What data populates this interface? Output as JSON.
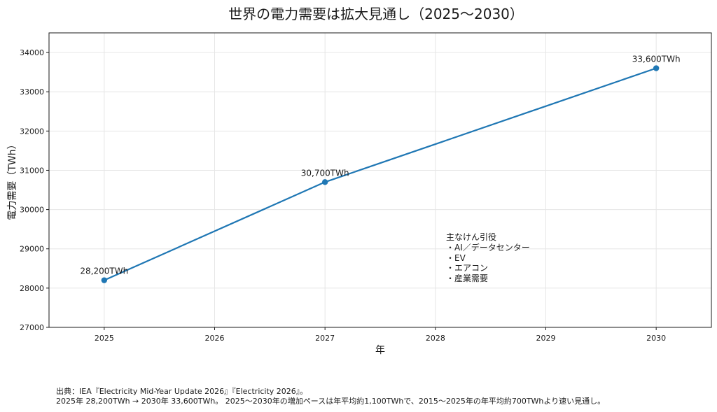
{
  "chart_data": {
    "type": "line",
    "title": "世界の電力需要は拡大見通し（2025〜2030）",
    "xlabel": "年",
    "ylabel": "電力需要（TWh）",
    "x": [
      2025,
      2027,
      2030
    ],
    "y": [
      28200,
      30700,
      33600
    ],
    "point_labels": [
      "28,200TWh",
      "30,700TWh",
      "33,600TWh"
    ],
    "xlim": [
      2024.5,
      2030.5
    ],
    "ylim": [
      27000,
      34500
    ],
    "x_ticks": [
      2025,
      2026,
      2027,
      2028,
      2029,
      2030
    ],
    "y_ticks": [
      27000,
      28000,
      29000,
      30000,
      31000,
      32000,
      33000,
      34000
    ],
    "grid": true,
    "line_color": "#1f77b4",
    "annotation": {
      "title": "主なけん引役",
      "items": [
        "・AI／データセンター",
        "・EV",
        "・エアコン",
        "・産業需要"
      ]
    }
  },
  "footer": {
    "line1": "出典：IEA『Electricity Mid-Year Update 2026』『Electricity 2026』。",
    "line2": "2025年 28,200TWh → 2030年 33,600TWh。 2025〜2030年の増加ペースは年平均約1,100TWhで、2015〜2025年の年平均約700TWhより速い見通し。"
  }
}
